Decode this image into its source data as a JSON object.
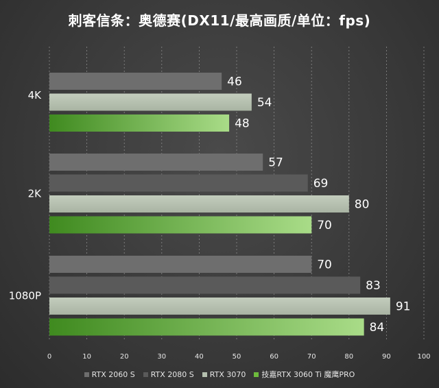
{
  "chart_data": {
    "type": "bar",
    "orientation": "horizontal",
    "title": "刺客信条：奥德赛(DX11/最高画质/单位：fps)",
    "categories": [
      "4K",
      "2K",
      "1080P"
    ],
    "series": [
      {
        "name": "RTX 2060 S",
        "color": "#6e6e6e",
        "values": [
          46,
          57,
          70
        ]
      },
      {
        "name": "RTX 2080 S",
        "color": "#5a5a5a",
        "values": [
          null,
          69,
          83
        ]
      },
      {
        "name": "RTX 3070",
        "color": "#b4bfae",
        "values": [
          54,
          80,
          91
        ]
      },
      {
        "name": "技嘉RTX 3060 Ti 魔鹰PRO",
        "color": "#6dbb3c",
        "values": [
          48,
          70,
          84
        ]
      }
    ],
    "xlim": [
      0,
      100
    ],
    "xticks": [
      "0",
      "10",
      "20",
      "30",
      "40",
      "50",
      "60",
      "70",
      "80",
      "90",
      "100"
    ],
    "grid": true,
    "legend_position": "bottom"
  }
}
